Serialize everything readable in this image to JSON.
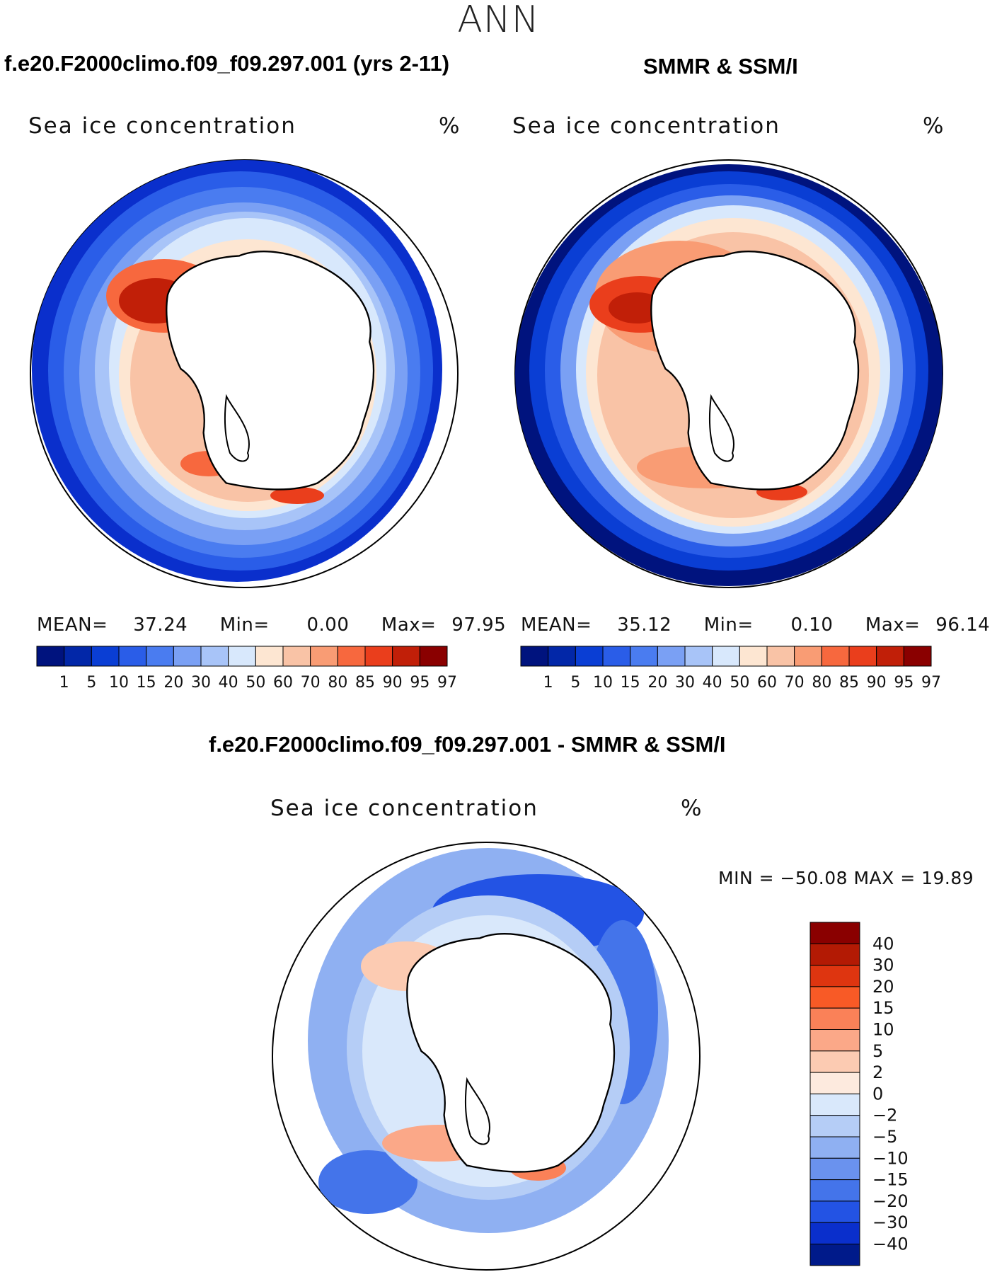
{
  "page": {
    "title": "ANN",
    "top_left_title": "f.e20.F2000climo.f09_f09.297.001 (yrs 2-11)",
    "top_right_title": "SMMR & SSM/I",
    "diff_title": "f.e20.F2000climo.f09_f09.297.001 - SMMR & SSM/I"
  },
  "panels": {
    "model": {
      "variable": "Sea ice concentration",
      "units": "%",
      "mean_label": "MEAN=",
      "mean": "37.24",
      "min_label": "Min=",
      "min": "0.00",
      "max_label": "Max=",
      "max": "97.95"
    },
    "obs": {
      "variable": "Sea ice concentration",
      "units": "%",
      "mean_label": "MEAN=",
      "mean": "35.12",
      "min_label": "Min=",
      "min": "0.10",
      "max_label": "Max=",
      "max": "96.14"
    },
    "diff": {
      "variable": "Sea ice concentration",
      "units": "%",
      "minmax_text": "MIN = −50.08 MAX =   19.89"
    }
  },
  "chart_data": [
    {
      "type": "heatmap",
      "title": "f.e20.F2000climo.f09_f09.297.001 (yrs 2-11)",
      "subtitle": "Sea ice concentration (%)",
      "projection": "south polar stereographic",
      "stats": {
        "mean": 37.24,
        "min": 0.0,
        "max": 97.95
      },
      "colorbar_levels": [
        1,
        5,
        10,
        15,
        20,
        30,
        40,
        50,
        60,
        70,
        80,
        85,
        90,
        95,
        97
      ],
      "colorbar_labels": [
        "1",
        "5",
        "10",
        "15",
        "20",
        "30",
        "40",
        "50",
        "60",
        "70",
        "80",
        "85",
        "90",
        "95",
        "97"
      ],
      "colors": [
        "#00137e",
        "#0227a8",
        "#0a3ed4",
        "#2a5de8",
        "#4a7cf0",
        "#7aa0f4",
        "#a8c4f8",
        "#d8e8fc",
        "#fde6d2",
        "#f9c3a6",
        "#f99c74",
        "#f7683e",
        "#ea3e1c",
        "#c11f08",
        "#8a0000"
      ],
      "colorbar_orientation": "horizontal"
    },
    {
      "type": "heatmap",
      "title": "SMMR & SSM/I",
      "subtitle": "Sea ice concentration (%)",
      "projection": "south polar stereographic",
      "stats": {
        "mean": 35.12,
        "min": 0.1,
        "max": 96.14
      },
      "colorbar_levels": [
        1,
        5,
        10,
        15,
        20,
        30,
        40,
        50,
        60,
        70,
        80,
        85,
        90,
        95,
        97
      ],
      "colorbar_labels": [
        "1",
        "5",
        "10",
        "15",
        "20",
        "30",
        "40",
        "50",
        "60",
        "70",
        "80",
        "85",
        "90",
        "95",
        "97"
      ],
      "colors": [
        "#00137e",
        "#0227a8",
        "#0a3ed4",
        "#2a5de8",
        "#4a7cf0",
        "#7aa0f4",
        "#a8c4f8",
        "#d8e8fc",
        "#fde6d2",
        "#f9c3a6",
        "#f99c74",
        "#f7683e",
        "#ea3e1c",
        "#c11f08",
        "#8a0000"
      ],
      "colorbar_orientation": "horizontal"
    },
    {
      "type": "heatmap",
      "title": "f.e20.F2000climo.f09_f09.297.001 - SMMR & SSM/I",
      "subtitle": "Sea ice concentration (%)",
      "projection": "south polar stereographic",
      "stats": {
        "min": -50.08,
        "max": 19.89
      },
      "colorbar_levels": [
        40,
        30,
        20,
        15,
        10,
        5,
        2,
        0,
        -2,
        -5,
        -10,
        -15,
        -20,
        -30,
        -40
      ],
      "colorbar_labels": [
        "40",
        "30",
        "20",
        "15",
        "10",
        "5",
        "2",
        "0",
        "−2",
        "−5",
        "−10",
        "−15",
        "−20",
        "−30",
        "−40"
      ],
      "colors": [
        "#8a0000",
        "#b31a04",
        "#de3510",
        "#f85a26",
        "#fa8158",
        "#fba888",
        "#fccbb2",
        "#fdeade",
        "#d9e8fb",
        "#b5cdf6",
        "#8fb0f2",
        "#6a92ee",
        "#4474ea",
        "#2353e4",
        "#0a2fcc",
        "#001a8a"
      ],
      "colorbar_orientation": "vertical"
    }
  ]
}
